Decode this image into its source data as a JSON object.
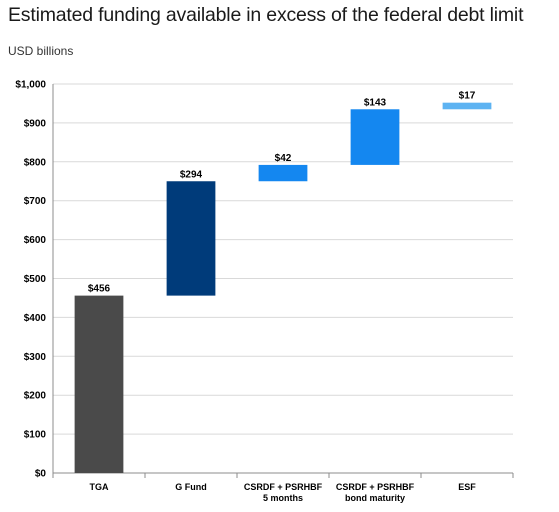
{
  "header": {
    "title": "Estimated funding available in excess of the federal debt limit",
    "subtitle": "USD billions"
  },
  "chart_data": {
    "type": "bar",
    "subtype": "waterfall",
    "y_unit": "USD billions",
    "ylim": [
      0,
      1000
    ],
    "yticks": [
      0,
      100,
      200,
      300,
      400,
      500,
      600,
      700,
      800,
      900,
      1000
    ],
    "ytick_labels": [
      "$0",
      "$100",
      "$200",
      "$300",
      "$400",
      "$500",
      "$600",
      "$700",
      "$800",
      "$900",
      "$1,000"
    ],
    "grid": true,
    "legend": "none",
    "categories": [
      [
        "TGA"
      ],
      [
        "G Fund"
      ],
      [
        "CSRDF + PSRHBF",
        "5 months"
      ],
      [
        "CSRDF + PSRHBF",
        "bond maturity"
      ],
      [
        "ESF"
      ]
    ],
    "values": [
      456,
      294,
      42,
      143,
      17
    ],
    "bases": [
      0,
      456,
      750,
      792,
      935
    ],
    "data_labels": [
      "$456",
      "$294",
      "$42",
      "$143",
      "$17"
    ],
    "colors": [
      "#4a4a4a",
      "#003b7a",
      "#1487f0",
      "#1487f0",
      "#5db3f2"
    ]
  }
}
